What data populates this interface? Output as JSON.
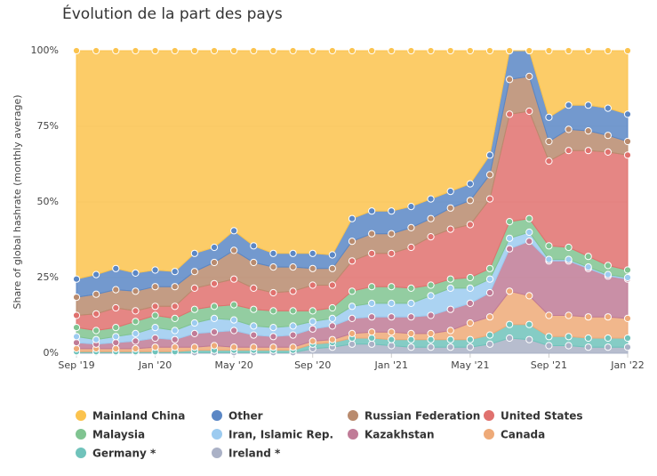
{
  "chart_data": {
    "type": "stacked-area",
    "title": "Évolution de la part des pays",
    "y_label": "Share of global hashrate (monthly average)",
    "categories": [
      "Sep '19",
      null,
      null,
      null,
      "Jan '20",
      null,
      null,
      null,
      "May '20",
      null,
      null,
      null,
      "Sep '20",
      null,
      null,
      null,
      "Jan '21",
      null,
      null,
      null,
      "May '21",
      null,
      null,
      null,
      "Sep '21",
      null,
      null,
      null,
      "Jan '22"
    ],
    "ylim": [
      0,
      100
    ],
    "yticks": [
      {
        "value": 0,
        "label": "0%"
      },
      {
        "value": 25,
        "label": "25%"
      },
      {
        "value": 50,
        "label": "50%"
      },
      {
        "value": 75,
        "label": "75%"
      },
      {
        "value": 100,
        "label": "100%"
      }
    ],
    "grid": true,
    "legend": "bottom",
    "series": [
      {
        "name": "Mainland China",
        "color": "#fbc34e",
        "values": [
          75.5,
          74,
          72,
          73.5,
          72.5,
          73,
          67,
          65,
          59.5,
          64.5,
          67,
          67,
          67,
          67.5,
          55.5,
          53,
          53,
          51.5,
          49,
          46.5,
          44,
          34.5,
          0,
          0,
          22,
          18,
          18,
          19,
          21
        ]
      },
      {
        "name": "Other",
        "color": "#5b87c5",
        "values": [
          6,
          6.5,
          7,
          6,
          5.5,
          5,
          6,
          5,
          6.5,
          5.5,
          4.5,
          4.5,
          5,
          4.5,
          7.5,
          7.5,
          7.5,
          7,
          6.5,
          5.5,
          5.5,
          6.5,
          9.5,
          8.5,
          8,
          8,
          8.5,
          9,
          9
        ]
      },
      {
        "name": "Russian Federation",
        "color": "#b98b6e",
        "values": [
          6,
          6.5,
          6,
          6.5,
          6.5,
          6.5,
          5.5,
          7,
          9.5,
          8.5,
          8.5,
          8,
          5.5,
          5.5,
          6.5,
          6.5,
          6.5,
          6.5,
          6,
          7,
          8,
          8,
          11.5,
          11.5,
          6.5,
          7,
          6.5,
          5.5,
          4.5
        ]
      },
      {
        "name": "United States",
        "color": "#e0716e",
        "values": [
          4,
          5.5,
          6.5,
          3.5,
          3,
          4,
          7,
          7.5,
          8.5,
          7,
          6,
          6.5,
          8.5,
          7.5,
          10,
          11,
          11,
          13.5,
          16,
          16.5,
          17.5,
          23,
          35.5,
          35.5,
          28,
          32,
          35,
          37.5,
          38
        ]
      },
      {
        "name": "Malaysia",
        "color": "#80c491",
        "values": [
          3,
          3,
          3,
          4,
          4,
          4,
          4.5,
          4,
          5,
          5.5,
          5.5,
          5,
          3.5,
          3.5,
          5,
          5.5,
          5.5,
          5,
          3.5,
          3,
          3.5,
          3.5,
          5.5,
          4.5,
          4.5,
          4,
          3.5,
          3,
          2.5
        ]
      },
      {
        "name": "Iran, Islamic Rep.",
        "color": "#9ccbf0",
        "values": [
          2,
          1.5,
          2,
          2.5,
          3.5,
          3,
          3.5,
          4.5,
          3.5,
          3,
          3,
          3,
          2.5,
          2.5,
          4,
          4.5,
          4.5,
          4.5,
          6.5,
          7,
          5,
          4.5,
          3.5,
          3,
          0.5,
          0.5,
          0.5,
          0.5,
          0.5
        ]
      },
      {
        "name": "Kazakhstan",
        "color": "#c07b97",
        "values": [
          2,
          1.5,
          2,
          2.5,
          3,
          2.5,
          4.5,
          4.5,
          5.5,
          4,
          3.5,
          4,
          4,
          4.5,
          5,
          5,
          5,
          5.5,
          6,
          7,
          6.5,
          8,
          14,
          18,
          18,
          18,
          16,
          13.5,
          13
        ]
      },
      {
        "name": "Canada",
        "color": "#eeaa78",
        "values": [
          1,
          1,
          1,
          1,
          1.5,
          1.5,
          1,
          1.5,
          1,
          1,
          1,
          1,
          1,
          1,
          1.5,
          2,
          2.5,
          2,
          2,
          3,
          5.5,
          6,
          11,
          9.5,
          7,
          7,
          7,
          7,
          6.5
        ]
      },
      {
        "name": "Germany *",
        "color": "#70c3bb",
        "values": [
          0.3,
          0.3,
          0.3,
          0.3,
          0.3,
          0.3,
          0.8,
          0.8,
          0.8,
          0.8,
          0.8,
          0.8,
          1.5,
          1.5,
          2,
          2,
          2,
          2.5,
          2.5,
          2.5,
          2.5,
          3,
          4.5,
          5,
          3,
          3,
          3,
          3,
          3
        ]
      },
      {
        "name": "Ireland *",
        "color": "#aab1c6",
        "values": [
          0.2,
          0.2,
          0.2,
          0.2,
          0.2,
          0.2,
          0.2,
          0.2,
          0.2,
          0.2,
          0.2,
          0.2,
          1.5,
          2,
          3,
          3,
          2.5,
          2,
          2,
          2,
          2,
          3,
          5,
          4.5,
          2.5,
          2.5,
          2,
          2,
          2
        ]
      }
    ]
  }
}
